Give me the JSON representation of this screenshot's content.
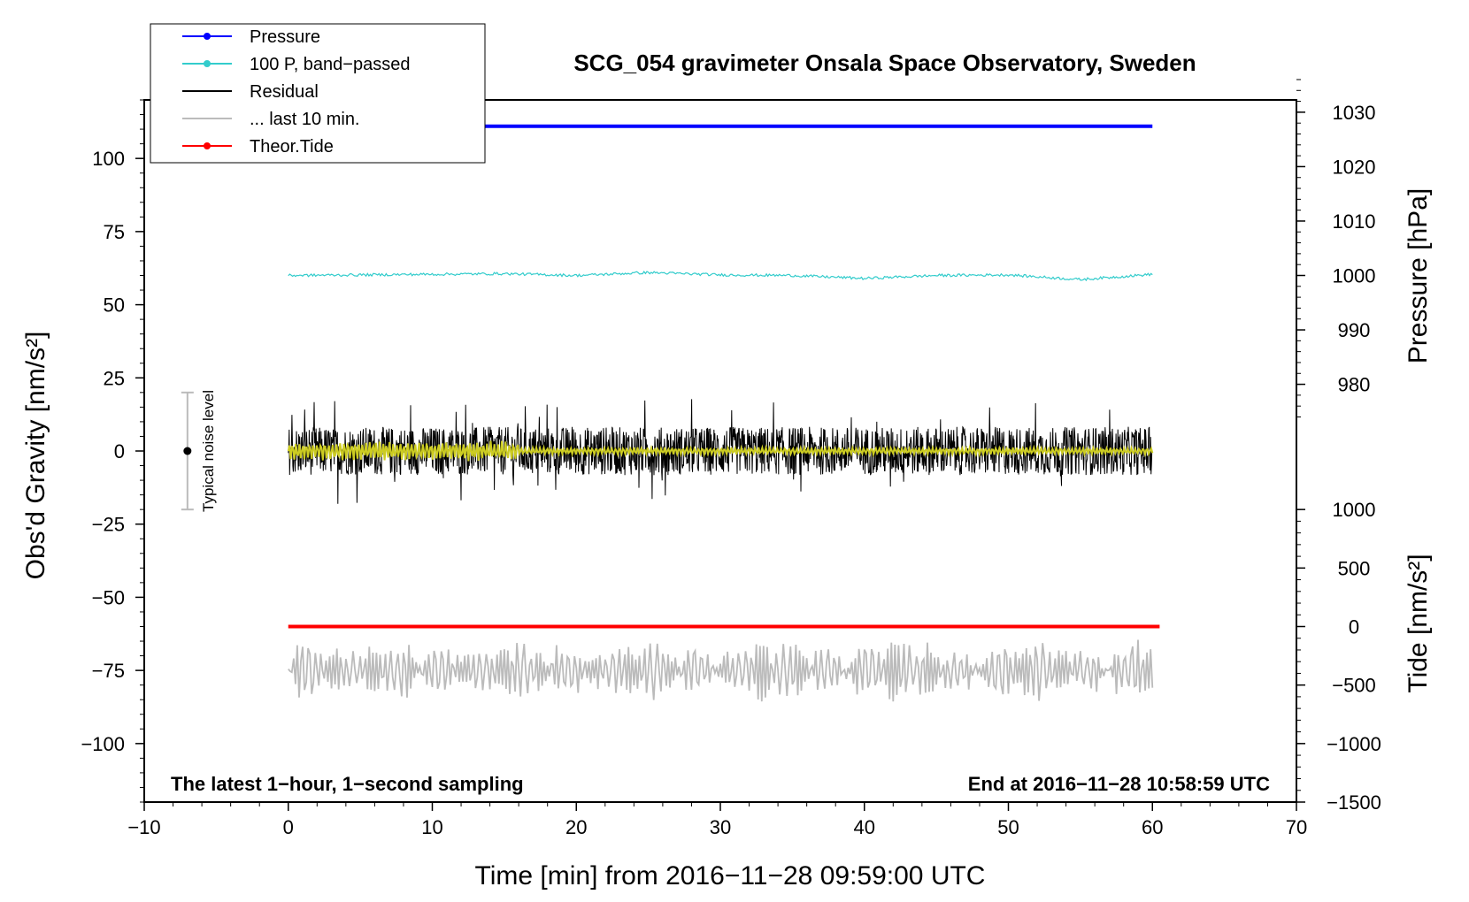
{
  "chart_data": {
    "type": "line",
    "title": "SCG_054 gravimeter Onsala Space Observatory, Sweden",
    "xlabel": "Time [min] from 2016−11−28 09:59:00 UTC",
    "ylabel_left": "Obs'd Gravity [nm/s²]",
    "ylabel_right_pressure": "Pressure [hPa]",
    "ylabel_right_tide": "Tide [nm/s²]",
    "xlim": [
      -10,
      70
    ],
    "ylim_left": [
      -120,
      120
    ],
    "x_ticks": [
      "−10",
      "0",
      "10",
      "20",
      "30",
      "40",
      "50",
      "60",
      "70"
    ],
    "x_tick_values": [
      -10,
      0,
      10,
      20,
      30,
      40,
      50,
      60,
      70
    ],
    "y_left_ticks": [
      "−100",
      "−75",
      "−50",
      "−25",
      "0",
      "25",
      "50",
      "75",
      "100"
    ],
    "y_left_tick_values": [
      -100,
      -75,
      -50,
      -25,
      0,
      25,
      50,
      75,
      100
    ],
    "pressure_axis": {
      "ticks": [
        "980",
        "990",
        "1000",
        "1010",
        "1020",
        "1030"
      ],
      "tick_values": [
        980,
        990,
        1000,
        1010,
        1020,
        1030
      ],
      "left_equiv_at_1000": 60,
      "left_units_per_hPa": 1.86
    },
    "tide_axis": {
      "ticks": [
        "−1500",
        "−1000",
        "−500",
        "0",
        "500",
        "1000"
      ],
      "tick_values": [
        -1500,
        -1000,
        -500,
        0,
        500,
        1000
      ],
      "left_equiv_at_0": -60,
      "left_units_per_nms2": 0.04
    },
    "legend": [
      {
        "label": "Pressure",
        "color": "#0000ff",
        "marker": true
      },
      {
        "label": "100 P, band−passed",
        "color": "#33cccc",
        "marker": true
      },
      {
        "label": "Residual",
        "color": "#000000",
        "marker": false
      },
      {
        "label": "... last 10 min.",
        "color": "#bbbbbb",
        "marker": false
      },
      {
        "label": "Theor.Tide",
        "color": "#ff0000",
        "marker": true
      }
    ],
    "series": [
      {
        "name": "Pressure",
        "color": "#0000ff",
        "description": "constant ~1030 hPa",
        "x": [
          0,
          60
        ],
        "y_left": [
          111,
          111
        ]
      },
      {
        "name": "100 P, band-passed",
        "color": "#33cccc",
        "x": [
          0,
          5,
          10,
          15,
          20,
          25,
          30,
          35,
          40,
          45,
          50,
          55,
          60
        ],
        "y_left": [
          60,
          60.2,
          60.4,
          60.6,
          60,
          61,
          60.2,
          60,
          59,
          60,
          60.2,
          58.6,
          60.4
        ]
      },
      {
        "name": "Residual",
        "color": "#000000",
        "x_range": [
          0,
          60
        ],
        "center": 0,
        "amplitude": 15
      },
      {
        "name": "Residual smoothed",
        "color": "#cccc22",
        "x_range": [
          0,
          60
        ],
        "center": 0,
        "amplitude": 2.5
      },
      {
        "name": "... last 10 min.",
        "color": "#bbbbbb",
        "x_range": [
          0,
          60
        ],
        "center": -75,
        "amplitude": 10
      },
      {
        "name": "Theor.Tide",
        "color": "#ff0000",
        "x": [
          0,
          60.5
        ],
        "y_left": [
          -60,
          -60
        ]
      }
    ],
    "annotations": {
      "bottom_left": "The latest 1−hour, 1−second sampling",
      "bottom_right": "End at 2016−11−28 10:58:59 UTC",
      "noise_label": "Typical noise level",
      "noise_bar": {
        "x": -7,
        "center": 0,
        "half_range": 20
      }
    }
  }
}
